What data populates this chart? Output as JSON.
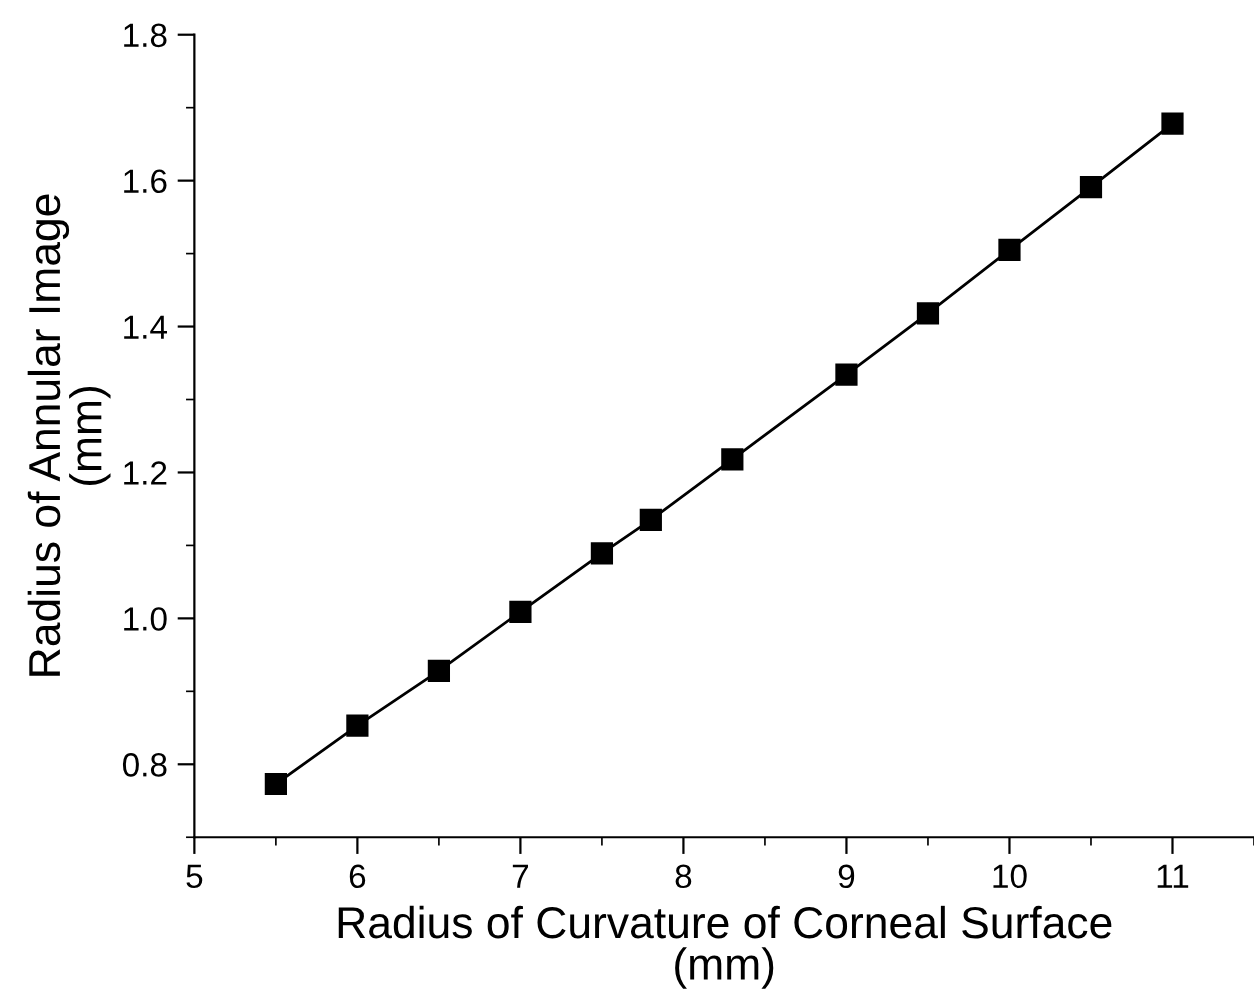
{
  "chart_data": {
    "type": "line",
    "xlabel": "Radius of Curvature of Corneal Surface\n(mm)",
    "ylabel": "Radius of Annular Image\n(mm)",
    "x": [
      5.5,
      6,
      6.5,
      7,
      7.5,
      7.8,
      8.3,
      9,
      9.5,
      10,
      10.5,
      11
    ],
    "series": [
      {
        "color": "#000000",
        "values": [
          0.773,
          0.853,
          0.928,
          1.009,
          1.089,
          1.135,
          1.218,
          1.334,
          1.418,
          1.505,
          1.591,
          1.678
        ]
      }
    ],
    "marker": "square",
    "line_style": "solid",
    "grid": false,
    "legend": false,
    "xlim": [
      5,
      11.5
    ],
    "ylim": [
      0.7,
      1.8
    ],
    "xticks": [
      5,
      {
        "value": 5.5,
        "label": null
      },
      6,
      {
        "value": 6.5,
        "label": null
      },
      7,
      {
        "value": 7.5,
        "label": null
      },
      8,
      {
        "value": 8.5,
        "label": null
      },
      9,
      {
        "value": 9.5,
        "label": null
      },
      10,
      {
        "value": 10.5,
        "label": null
      },
      11,
      {
        "value": 11.5,
        "label": null
      }
    ],
    "yticks": [
      {
        "value": 0.7,
        "label": null
      },
      {
        "value": 0.8,
        "label": "0.8"
      },
      {
        "value": 0.9,
        "label": null
      },
      {
        "value": 1.0,
        "label": "1.0"
      },
      {
        "value": 1.1,
        "label": null
      },
      {
        "value": 1.2,
        "label": "1.2"
      },
      {
        "value": 1.3,
        "label": null
      },
      {
        "value": 1.4,
        "label": "1.4"
      },
      {
        "value": 1.5,
        "label": null
      },
      {
        "value": 1.6,
        "label": "1.6"
      },
      {
        "value": 1.7,
        "label": null
      },
      {
        "value": 1.8,
        "label": "1.8"
      }
    ]
  }
}
